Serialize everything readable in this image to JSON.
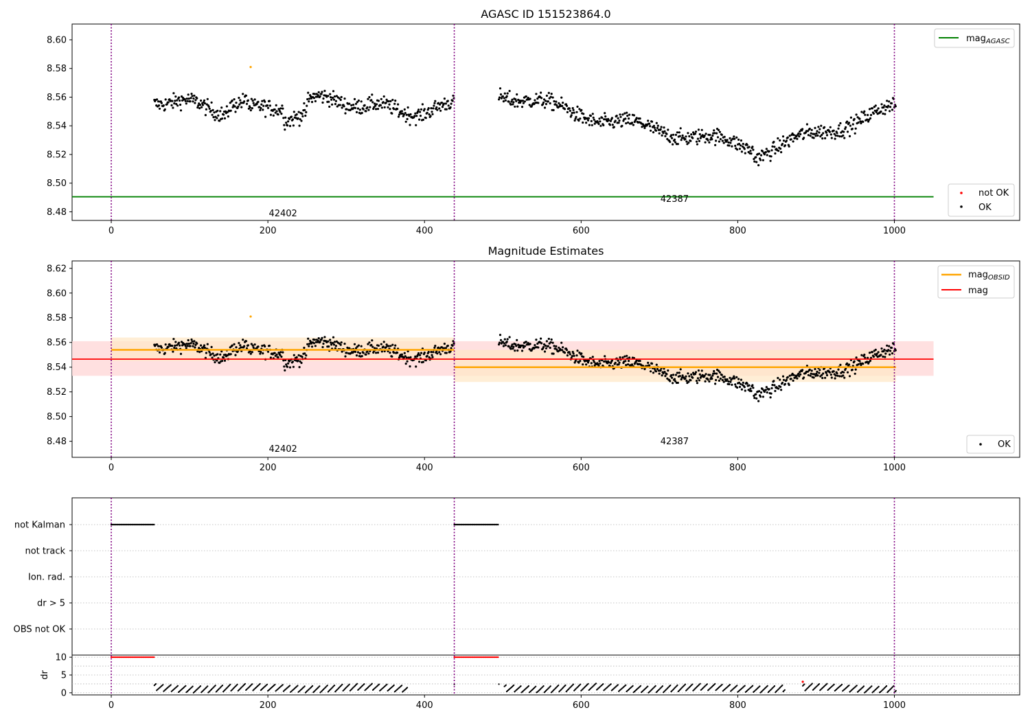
{
  "figure": {
    "background": "#ffffff"
  },
  "colors": {
    "ok": "#000000",
    "not_ok": "#ff0000",
    "outlier": "#ffa500",
    "agasc_line": "#008000",
    "obsid_line": "#ffa500",
    "mag_line": "#ff0000",
    "mag_band": "#ffdddd",
    "obsid_band": "#ffe8c8",
    "boundary": "#800080"
  },
  "chart_data": [
    {
      "id": "agasc",
      "type": "scatter",
      "title": "AGASC ID 151523864.0",
      "xlim": [
        -50,
        1160
      ],
      "ylim": [
        8.474,
        8.611
      ],
      "xticks": [
        0,
        200,
        400,
        600,
        800,
        1000
      ],
      "yticks": [
        8.48,
        8.5,
        8.52,
        8.54,
        8.56,
        8.58,
        8.6
      ],
      "ytick_labels": [
        "8.48",
        "8.50",
        "8.52",
        "8.54",
        "8.56",
        "8.58",
        "8.60"
      ],
      "boundaries": [
        0,
        438,
        1000
      ],
      "obs_labels": [
        {
          "text": "42402",
          "x": 200,
          "y": 8.479
        },
        {
          "text": "42387",
          "x": 700,
          "y": 8.489
        }
      ],
      "lines": [
        {
          "name": "mag_AGASC",
          "value": 8.4905,
          "x0": -50,
          "x1": 1050
        }
      ],
      "segments": [
        {
          "x0": 55,
          "x1": 438,
          "mean": 8.554
        },
        {
          "x0": 495,
          "x1": 1002,
          "mean": 8.54
        }
      ],
      "outlier": {
        "x": 178,
        "y": 8.581
      },
      "legend_lines": [
        "mag",
        "AGASC"
      ],
      "legend_points": [
        "not OK",
        "OK"
      ]
    },
    {
      "id": "estimates",
      "type": "scatter",
      "title": "Magnitude Estimates",
      "xlim": [
        -50,
        1160
      ],
      "ylim": [
        8.467,
        8.626
      ],
      "xticks": [
        0,
        200,
        400,
        600,
        800,
        1000
      ],
      "yticks": [
        8.48,
        8.5,
        8.52,
        8.54,
        8.56,
        8.58,
        8.6,
        8.62
      ],
      "ytick_labels": [
        "8.48",
        "8.50",
        "8.52",
        "8.54",
        "8.56",
        "8.58",
        "8.60",
        "8.62"
      ],
      "boundaries": [
        0,
        438,
        1000
      ],
      "obs_labels": [
        {
          "text": "42402",
          "x": 200,
          "y": 8.474
        },
        {
          "text": "42387",
          "x": 700,
          "y": 8.48
        }
      ],
      "mag": {
        "value": 8.5465,
        "band": [
          8.533,
          8.561
        ],
        "x0": -50,
        "x1": 1050
      },
      "obsid_means": [
        {
          "x0": 0,
          "x1": 438,
          "value": 8.554,
          "band": [
            8.545,
            8.564
          ]
        },
        {
          "x0": 438,
          "x1": 1002,
          "value": 8.54,
          "band": [
            8.528,
            8.554
          ]
        }
      ],
      "outlier": {
        "x": 178,
        "y": 8.581
      },
      "legend_lines": [
        "mag",
        "OBSID",
        "mag"
      ],
      "legend_points": [
        "OK"
      ]
    },
    {
      "id": "flags",
      "type": "scatter",
      "title": "",
      "xlim": [
        -50,
        1160
      ],
      "categories": [
        "not Kalman",
        "not track",
        "Ion. rad.",
        "dr > 5",
        "OBS not OK"
      ],
      "boundaries": [
        0,
        438,
        1000
      ],
      "flagged_ranges": [
        {
          "category": "not Kalman",
          "x0": 0,
          "x1": 55
        },
        {
          "category": "not Kalman",
          "x0": 438,
          "x1": 495
        }
      ]
    },
    {
      "id": "dr",
      "type": "scatter",
      "title": "",
      "ylabel": "dr",
      "xlim": [
        -50,
        1160
      ],
      "ylim": [
        -0.6,
        10.6
      ],
      "xticks": [
        0,
        200,
        400,
        600,
        800,
        1000
      ],
      "yticks": [
        0,
        5,
        10
      ],
      "ytick_labels": [
        "0",
        "5",
        "10"
      ],
      "boundaries": [
        0,
        438,
        1000
      ],
      "clipped_ranges": [
        {
          "x0": 0,
          "x1": 55,
          "value": 10
        },
        {
          "x0": 438,
          "x1": 495,
          "value": 10
        }
      ],
      "gaps": [
        [
          378,
          438
        ],
        [
          495,
          502
        ],
        [
          860,
          883
        ]
      ],
      "red_point": {
        "x": 883,
        "y": 3.1
      }
    }
  ]
}
